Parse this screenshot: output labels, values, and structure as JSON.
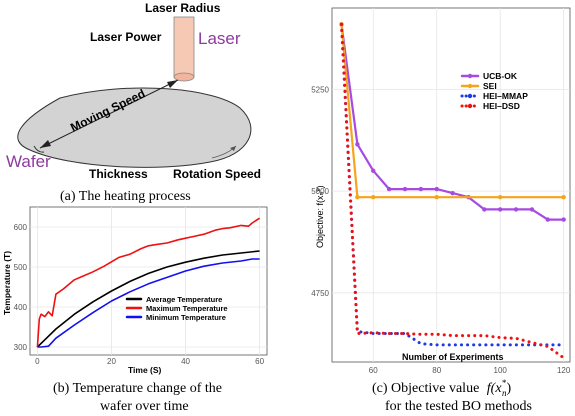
{
  "heating": {
    "labels": {
      "laser_radius": "Laser Radius",
      "laser_power": "Laser Power",
      "laser": "Laser",
      "moving_speed": "Moving Speed",
      "wafer": "Wafer",
      "thickness": "Thickness",
      "rotation_speed": "Rotation Speed"
    },
    "colors": {
      "laser_text": "#8e3a9e",
      "wafer_text": "#8e3a9e",
      "disk": "#d3d3d3",
      "laser_beam": "#f6c9b4"
    },
    "caption": "(a) The heating process"
  },
  "temp_chart": {
    "caption_line1": "(b) Temperature change of the",
    "caption_line2": "wafer over time",
    "chart_data": {
      "type": "line",
      "xlabel": "Time (S)",
      "ylabel": "Temperature (T)",
      "xlim": [
        -2,
        62
      ],
      "ylim": [
        280,
        650
      ],
      "xticks": [
        0,
        20,
        40,
        60
      ],
      "yticks": [
        300,
        400,
        500,
        600
      ],
      "legend_position": "center-right",
      "series": [
        {
          "name": "Average Temperature",
          "color": "#000000",
          "x": [
            0,
            2,
            5,
            10,
            15,
            20,
            25,
            30,
            35,
            40,
            45,
            50,
            55,
            60
          ],
          "y": [
            300,
            318,
            345,
            382,
            413,
            440,
            464,
            484,
            500,
            512,
            522,
            530,
            535,
            540
          ]
        },
        {
          "name": "Maximum Temperature",
          "color": "#ee1111",
          "x": [
            0,
            0.5,
            1,
            2,
            3,
            4,
            5,
            7,
            10,
            12,
            15,
            18,
            20,
            22,
            25,
            28,
            30,
            32,
            35,
            38,
            40,
            42,
            45,
            48,
            50,
            52,
            55,
            57,
            58,
            59,
            60
          ],
          "y": [
            300,
            370,
            382,
            376,
            388,
            378,
            432,
            445,
            468,
            476,
            488,
            502,
            513,
            524,
            532,
            546,
            553,
            556,
            560,
            568,
            572,
            576,
            582,
            592,
            596,
            598,
            604,
            602,
            610,
            616,
            622
          ]
        },
        {
          "name": "Minimum Temperature",
          "color": "#1111ee",
          "x": [
            0,
            1,
            3,
            5,
            10,
            15,
            20,
            25,
            30,
            35,
            40,
            45,
            50,
            55,
            58,
            60
          ],
          "y": [
            300,
            300,
            302,
            322,
            355,
            386,
            415,
            438,
            458,
            474,
            490,
            502,
            510,
            515,
            520,
            520
          ]
        }
      ]
    }
  },
  "bo_chart": {
    "caption_line1": "(c) Objective value",
    "caption_math": "f(x",
    "caption_math_sub": "n",
    "caption_math_sup": "*",
    "caption_math_end": ")",
    "caption_line2": "for the tested BO methods",
    "chart_data": {
      "type": "line",
      "xlabel": "Number of Experiments",
      "ylabel": "Objective: f(xₙ*)",
      "xlim": [
        47,
        122
      ],
      "ylim": [
        4580,
        5450
      ],
      "xticks": [
        60,
        80,
        100,
        120
      ],
      "yticks": [
        4750,
        5000,
        5250
      ],
      "legend_position": "top-right",
      "series": [
        {
          "name": "UCB-OK",
          "color": "#a64be0",
          "style": "solid",
          "x": [
            50,
            55,
            60,
            65,
            70,
            75,
            80,
            85,
            90,
            95,
            100,
            105,
            110,
            115,
            120
          ],
          "y": [
            5410,
            5115,
            5050,
            5005,
            5005,
            5005,
            5005,
            4995,
            4985,
            4955,
            4955,
            4955,
            4955,
            4930,
            4930
          ]
        },
        {
          "name": "SEI",
          "color": "#f5a41d",
          "style": "solid",
          "x": [
            50,
            55,
            60,
            80,
            100,
            120
          ],
          "y": [
            5410,
            4985,
            4985,
            4985,
            4985,
            4985
          ]
        },
        {
          "name": "HEI–MMAP",
          "color": "#1d3be0",
          "style": "dotted",
          "x": [
            50,
            55,
            60,
            65,
            70,
            75,
            80,
            85,
            90,
            95,
            100,
            110,
            120
          ],
          "y": [
            5410,
            4655,
            4650,
            4650,
            4650,
            4625,
            4622,
            4622,
            4622,
            4622,
            4622,
            4622,
            4622
          ]
        },
        {
          "name": "HEI–DSD",
          "color": "#ee1111",
          "style": "dotted",
          "x": [
            50,
            55,
            60,
            65,
            70,
            75,
            80,
            85,
            90,
            95,
            100,
            105,
            110,
            115,
            120
          ],
          "y": [
            5410,
            4650,
            4652,
            4650,
            4650,
            4648,
            4648,
            4645,
            4645,
            4645,
            4640,
            4638,
            4628,
            4618,
            4590
          ]
        }
      ]
    }
  }
}
